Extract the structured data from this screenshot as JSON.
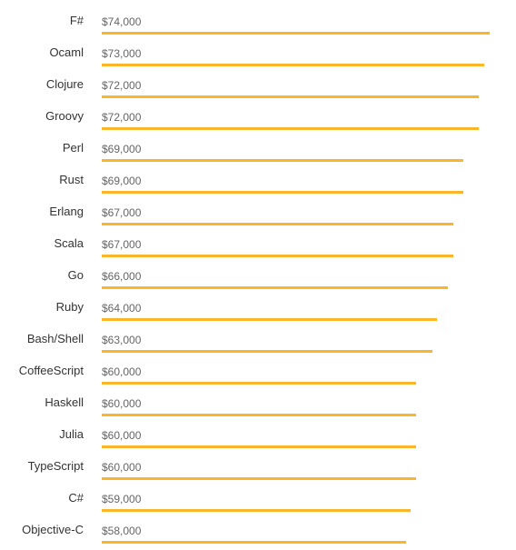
{
  "colors": {
    "bar": "#fbb52b",
    "label": "#333333",
    "value": "#666666"
  },
  "chart_data": {
    "type": "bar",
    "orientation": "horizontal",
    "title": "",
    "xlabel": "",
    "ylabel": "",
    "categories": [
      "F#",
      "Ocaml",
      "Clojure",
      "Groovy",
      "Perl",
      "Rust",
      "Erlang",
      "Scala",
      "Go",
      "Ruby",
      "Bash/Shell",
      "CoffeeScript",
      "Haskell",
      "Julia",
      "TypeScript",
      "C#",
      "Objective-C"
    ],
    "values": [
      74000,
      73000,
      72000,
      72000,
      69000,
      69000,
      67000,
      67000,
      66000,
      64000,
      63000,
      60000,
      60000,
      60000,
      60000,
      59000,
      58000
    ],
    "value_labels": [
      "$74,000",
      "$73,000",
      "$72,000",
      "$72,000",
      "$69,000",
      "$69,000",
      "$67,000",
      "$67,000",
      "$66,000",
      "$64,000",
      "$63,000",
      "$60,000",
      "$60,000",
      "$60,000",
      "$60,000",
      "$59,000",
      "$58,000"
    ],
    "xlim": [
      0,
      74000
    ],
    "grid": false,
    "legend": "none"
  }
}
